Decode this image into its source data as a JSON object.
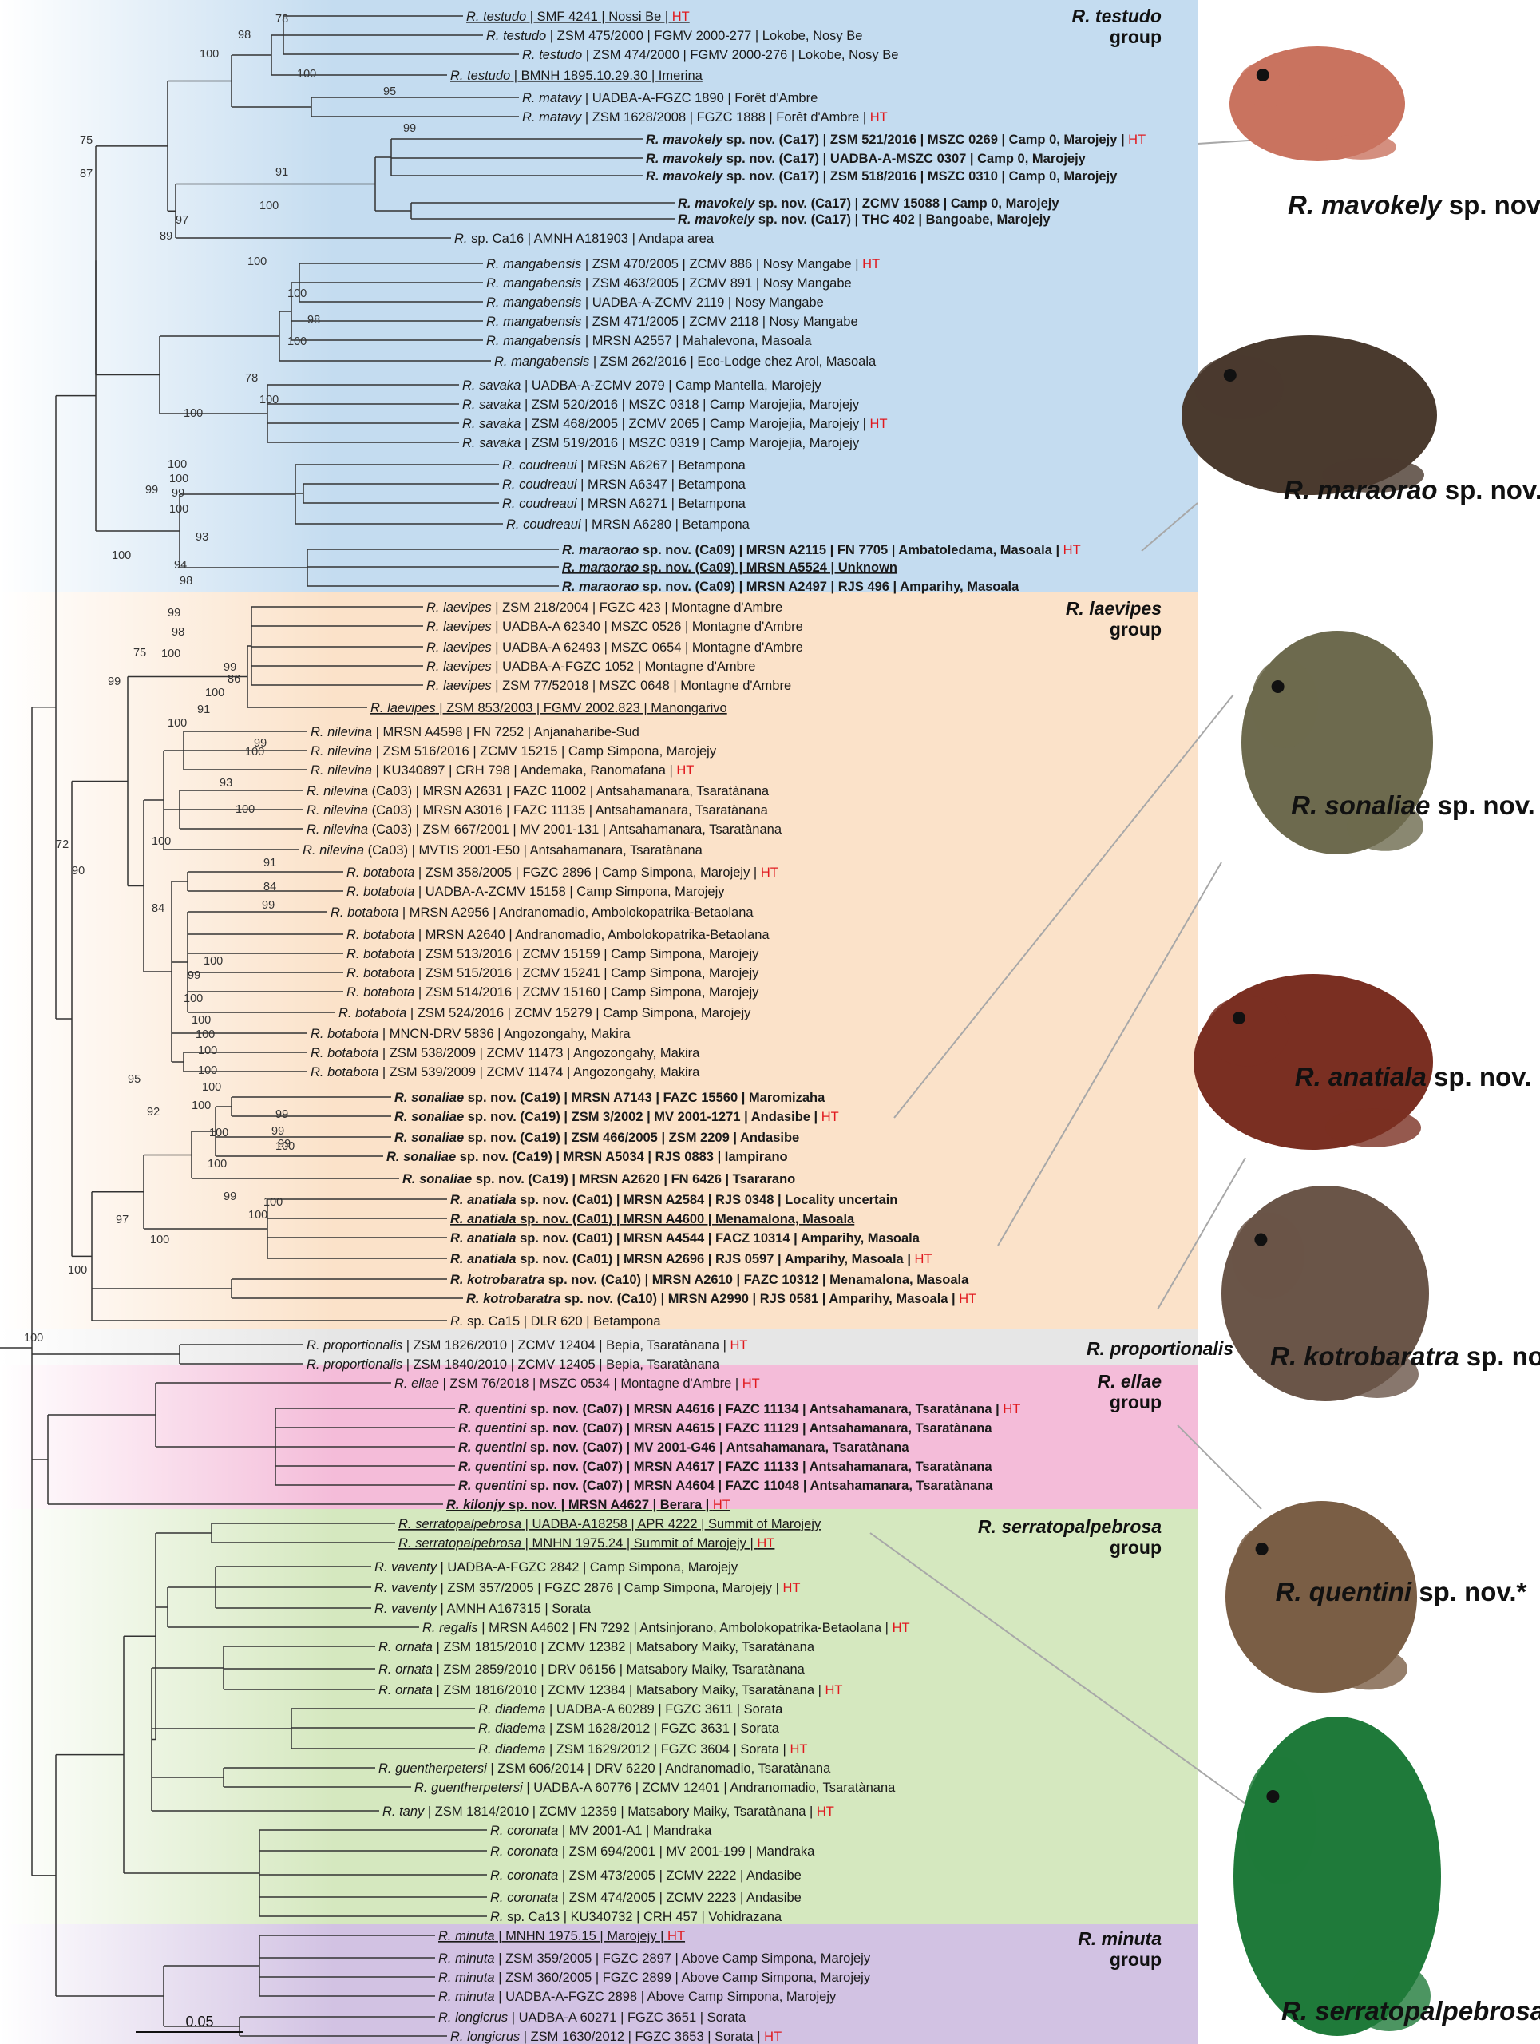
{
  "groups": [
    {
      "label": "R. testudo\ngroup",
      "color": "#c4dcf0"
    },
    {
      "label": "R. laevipes\ngroup",
      "color": "#fbe2c9"
    },
    {
      "label": "R. proportionalis",
      "color": "#e6e6e6"
    },
    {
      "label": "R. ellae\ngroup",
      "color": "#f4bcd9"
    },
    {
      "label": "R. serratopalpebrosa\ngroup",
      "color": "#d5e8bf"
    },
    {
      "label": "R. minuta\ngroup",
      "color": "#d2c2e3"
    }
  ],
  "leaves": [
    {
      "sp": "R. testudo",
      "rest": " | SMF 4241 | Nossi Be | ",
      "ht": true,
      "u": true
    },
    {
      "sp": "R. testudo",
      "rest": " | ZSM 475/2000 | FGMV 2000-277 | Lokobe, Nosy Be"
    },
    {
      "sp": "R. testudo",
      "rest": " | ZSM 474/2000 | FGMV 2000-276 | Lokobe, Nosy Be"
    },
    {
      "sp": "R. testudo",
      "rest": " | BMNH 1895.10.29.30 | Imerina",
      "u": true
    },
    {
      "sp": "R. matavy",
      "rest": " | UADBA-A-FGZC 1890 | Forêt d'Ambre"
    },
    {
      "sp": "R. matavy",
      "rest": " | ZSM 1628/2008 | FGZC 1888 | Forêt d'Ambre | ",
      "ht": true
    },
    {
      "sp": "R. mavokely",
      "rest": " sp. nov. (Ca17) | ZSM 521/2016 | MSZC 0269 | Camp 0, Marojejy | ",
      "ht": true,
      "b": true
    },
    {
      "sp": "R. mavokely",
      "rest": " sp. nov. (Ca17) | UADBA-A-MSZC 0307 | Camp 0, Marojejy",
      "b": true
    },
    {
      "sp": "R. mavokely",
      "rest": " sp. nov. (Ca17) | ZSM 518/2016 | MSZC 0310 | Camp 0, Marojejy",
      "b": true
    },
    {
      "sp": "R. mavokely",
      "rest": " sp. nov. (Ca17) | ZCMV 15088 | Camp 0, Marojejy",
      "b": true
    },
    {
      "sp": "R. mavokely",
      "rest": " sp. nov. (Ca17) | THC 402 | Bangoabe, Marojejy",
      "b": true
    },
    {
      "sp": "R.",
      "rest": " sp. Ca16 | AMNH A181903 | Andapa area"
    },
    {
      "sp": "R. mangabensis",
      "rest": " | ZSM 470/2005 | ZCMV 886 | Nosy Mangabe | ",
      "ht": true
    },
    {
      "sp": "R. mangabensis",
      "rest": " | ZSM 463/2005 | ZCMV 891 | Nosy Mangabe"
    },
    {
      "sp": "R. mangabensis",
      "rest": " | UADBA-A-ZCMV 2119 | Nosy Mangabe"
    },
    {
      "sp": "R. mangabensis",
      "rest": " | ZSM 471/2005 | ZCMV 2118 | Nosy Mangabe"
    },
    {
      "sp": "R. mangabensis",
      "rest": " | MRSN A2557 | Mahalevona, Masoala"
    },
    {
      "sp": "R. mangabensis",
      "rest": " | ZSM 262/2016 | Eco-Lodge chez Arol, Masoala"
    },
    {
      "sp": "R. savaka",
      "rest": " | UADBA-A-ZCMV 2079 | Camp Mantella, Marojejy"
    },
    {
      "sp": "R. savaka",
      "rest": " | ZSM 520/2016 | MSZC 0318 | Camp Marojejia, Marojejy"
    },
    {
      "sp": "R. savaka",
      "rest": " | ZSM 468/2005 | ZCMV 2065 | Camp Marojejia, Marojejy | ",
      "ht": true
    },
    {
      "sp": "R. savaka",
      "rest": " | ZSM 519/2016 | MSZC 0319 | Camp Marojejia, Marojejy"
    },
    {
      "sp": "R. coudreaui",
      "rest": " | MRSN A6267 | Betampona"
    },
    {
      "sp": "R. coudreaui",
      "rest": " | MRSN A6347 | Betampona"
    },
    {
      "sp": "R. coudreaui",
      "rest": " | MRSN A6271 | Betampona"
    },
    {
      "sp": "R. coudreaui",
      "rest": " | MRSN A6280 | Betampona"
    },
    {
      "sp": "R. maraorao",
      "rest": " sp. nov. (Ca09) | MRSN A2115 | FN 7705 | Ambatoledama, Masoala | ",
      "ht": true,
      "b": true
    },
    {
      "sp": "R. maraorao",
      "rest": " sp. nov. (Ca09) | MRSN A5524 | Unknown",
      "b": true,
      "u": true
    },
    {
      "sp": "R. maraorao",
      "rest": " sp. nov. (Ca09) | MRSN A2497 | RJS 496 | Amparihy, Masoala",
      "b": true
    },
    {
      "sp": "R. laevipes",
      "rest": " | ZSM 218/2004 | FGZC 423 | Montagne d'Ambre"
    },
    {
      "sp": "R. laevipes",
      "rest": " | UADBA-A 62340 | MSZC 0526 | Montagne d'Ambre"
    },
    {
      "sp": "R. laevipes",
      "rest": " | UADBA-A 62493 | MSZC 0654 | Montagne d'Ambre"
    },
    {
      "sp": "R. laevipes",
      "rest": " | UADBA-A-FGZC 1052 | Montagne d'Ambre"
    },
    {
      "sp": "R. laevipes",
      "rest": " | ZSM 77/52018 | MSZC 0648 | Montagne d'Ambre"
    },
    {
      "sp": "R. laevipes",
      "rest": " | ZSM 853/2003 | FGMV 2002.823 | Manongarivo",
      "u": true
    },
    {
      "sp": "R. nilevina",
      "rest": " | MRSN A4598 | FN 7252 | Anjanaharibe-Sud"
    },
    {
      "sp": "R. nilevina",
      "rest": " | ZSM 516/2016 | ZCMV 15215 | Camp Simpona, Marojejy"
    },
    {
      "sp": "R. nilevina",
      "rest": " | KU340897 | CRH 798 | Andemaka, Ranomafana | ",
      "ht": true
    },
    {
      "sp": "R. nilevina",
      "rest": " (Ca03) | MRSN A2631 | FAZC 11002 | Antsahamanara, Tsaratànana"
    },
    {
      "sp": "R. nilevina",
      "rest": " (Ca03) | MRSN A3016 | FAZC 11135 | Antsahamanara, Tsaratànana"
    },
    {
      "sp": "R. nilevina",
      "rest": " (Ca03) | ZSM 667/2001 | MV 2001-131 | Antsahamanara, Tsaratànana"
    },
    {
      "sp": "R. nilevina",
      "rest": " (Ca03) | MVTIS 2001-E50 | Antsahamanara, Tsaratànana"
    },
    {
      "sp": "R. botabota",
      "rest": " | ZSM 358/2005 | FGZC 2896 | Camp Simpona, Marojejy | ",
      "ht": true
    },
    {
      "sp": "R. botabota",
      "rest": " | UADBA-A-ZCMV 15158 | Camp Simpona, Marojejy"
    },
    {
      "sp": "R. botabota",
      "rest": " | MRSN A2956 | Andranomadio, Ambolokopatrika-Betaolana"
    },
    {
      "sp": "R. botabota",
      "rest": " | MRSN A2640 | Andranomadio, Ambolokopatrika-Betaolana"
    },
    {
      "sp": "R. botabota",
      "rest": " | ZSM 513/2016 | ZCMV 15159 | Camp Simpona, Marojejy"
    },
    {
      "sp": "R. botabota",
      "rest": " | ZSM 515/2016 | ZCMV 15241 | Camp Simpona, Marojejy"
    },
    {
      "sp": "R. botabota",
      "rest": " | ZSM 514/2016 | ZCMV 15160 | Camp Simpona, Marojejy"
    },
    {
      "sp": "R. botabota",
      "rest": " | ZSM 524/2016 | ZCMV 15279 | Camp Simpona, Marojejy"
    },
    {
      "sp": "R. botabota",
      "rest": " | MNCN-DRV 5836 | Angozongahy, Makira"
    },
    {
      "sp": "R. botabota",
      "rest": " | ZSM 538/2009 | ZCMV 11473 | Angozongahy, Makira"
    },
    {
      "sp": "R. botabota",
      "rest": " | ZSM 539/2009 | ZCMV 11474 | Angozongahy, Makira"
    },
    {
      "sp": "R. sonaliae",
      "rest": " sp. nov. (Ca19) | MRSN A7143 | FAZC 15560 | Maromizaha",
      "b": true
    },
    {
      "sp": "R. sonaliae",
      "rest": " sp. nov. (Ca19) | ZSM 3/2002 | MV 2001-1271 | Andasibe | ",
      "ht": true,
      "b": true
    },
    {
      "sp": "R. sonaliae",
      "rest": " sp. nov. (Ca19) | ZSM 466/2005 | ZSM 2209 | Andasibe",
      "b": true
    },
    {
      "sp": "R. sonaliae",
      "rest": " sp. nov. (Ca19) | MRSN A5034 | RJS 0883 | Iampirano",
      "b": true
    },
    {
      "sp": "R. sonaliae",
      "rest": " sp. nov. (Ca19) | MRSN A2620 | FN 6426 | Tsararano",
      "b": true
    },
    {
      "sp": "R. anatiala",
      "rest": " sp. nov. (Ca01) | MRSN A2584 | RJS 0348 | Locality uncertain",
      "b": true
    },
    {
      "sp": "R. anatiala",
      "rest": " sp. nov. (Ca01) | MRSN A4600 | Menamalona, Masoala",
      "b": true,
      "u": true
    },
    {
      "sp": "R. anatiala",
      "rest": " sp. nov. (Ca01) | MRSN A4544 | FACZ 10314 | Amparihy, Masoala",
      "b": true
    },
    {
      "sp": "R. anatiala",
      "rest": " sp. nov. (Ca01) | MRSN A2696 | RJS 0597 | Amparihy, Masoala | ",
      "ht": true,
      "b": true
    },
    {
      "sp": "R. kotrobaratra",
      "rest": " sp. nov. (Ca10) | MRSN A2610 | FAZC 10312 | Menamalona, Masoala",
      "b": true
    },
    {
      "sp": "R. kotrobaratra",
      "rest": " sp. nov. (Ca10) | MRSN A2990 | RJS 0581 | Amparihy, Masoala | ",
      "ht": true,
      "b": true
    },
    {
      "sp": "R.",
      "rest": " sp. Ca15 | DLR 620 | Betampona"
    },
    {
      "sp": "R. proportionalis",
      "rest": " | ZSM 1826/2010 | ZCMV 12404 | Bepia, Tsaratànana | ",
      "ht": true
    },
    {
      "sp": "R. proportionalis",
      "rest": " | ZSM 1840/2010 | ZCMV 12405 | Bepia, Tsaratànana"
    },
    {
      "sp": "R. ellae",
      "rest": " | ZSM 76/2018 | MSZC 0534 | Montagne d'Ambre | ",
      "ht": true
    },
    {
      "sp": "R. quentini",
      "rest": " sp. nov. (Ca07) | MRSN A4616 | FAZC 11134 | Antsahamanara, Tsaratànana | ",
      "ht": true,
      "b": true
    },
    {
      "sp": "R. quentini",
      "rest": " sp. nov. (Ca07) | MRSN A4615 | FAZC 11129 | Antsahamanara, Tsaratànana",
      "b": true
    },
    {
      "sp": "R. quentini",
      "rest": " sp. nov. (Ca07) | MV 2001-G46 | Antsahamanara, Tsaratànana",
      "b": true
    },
    {
      "sp": "R. quentini",
      "rest": " sp. nov. (Ca07) | MRSN A4617 | FAZC 11133 | Antsahamanara, Tsaratànana",
      "b": true
    },
    {
      "sp": "R. quentini",
      "rest": " sp. nov. (Ca07) | MRSN A4604 | FAZC 11048 | Antsahamanara, Tsaratànana",
      "b": true
    },
    {
      "sp": "R. kilonjy",
      "rest": " sp. nov. | MRSN A4627 | Berara | ",
      "ht": true,
      "b": true,
      "u": true
    },
    {
      "sp": "R. serratopalpebrosa",
      "rest": " | UADBA-A18258 | APR 4222 | Summit of Marojejy",
      "u": true
    },
    {
      "sp": "R. serratopalpebrosa",
      "rest": " | MNHN 1975.24 | Summit of Marojejy | ",
      "ht": true,
      "u": true
    },
    {
      "sp": "R. vaventy",
      "rest": " | UADBA-A-FGZC 2842 | Camp Simpona, Marojejy"
    },
    {
      "sp": "R. vaventy",
      "rest": " | ZSM 357/2005 | FGZC 2876 | Camp Simpona, Marojejy | ",
      "ht": true
    },
    {
      "sp": "R. vaventy",
      "rest": " | AMNH A167315 | Sorata"
    },
    {
      "sp": "R. regalis",
      "rest": " | MRSN A4602 | FN 7292 | Antsinjorano, Ambolokopatrika-Betaolana | ",
      "ht": true
    },
    {
      "sp": "R. ornata",
      "rest": " | ZSM 1815/2010 | ZCMV 12382 | Matsabory Maiky, Tsaratànana"
    },
    {
      "sp": "R. ornata",
      "rest": " | ZSM 2859/2010 | DRV 06156 | Matsabory Maiky, Tsaratànana"
    },
    {
      "sp": "R. ornata",
      "rest": " | ZSM 1816/2010 | ZCMV 12384 | Matsabory Maiky, Tsaratànana | ",
      "ht": true
    },
    {
      "sp": "R. diadema",
      "rest": " | UADBA-A 60289 | FGZC 3611 | Sorata"
    },
    {
      "sp": "R. diadema",
      "rest": " | ZSM 1628/2012 | FGZC 3631 | Sorata"
    },
    {
      "sp": "R. diadema",
      "rest": " | ZSM 1629/2012 | FGZC 3604 | Sorata | ",
      "ht": true
    },
    {
      "sp": "R. guentherpetersi",
      "rest": " | ZSM 606/2014 | DRV 6220 | Andranomadio, Tsaratànana"
    },
    {
      "sp": "R. guentherpetersi",
      "rest": " | UADBA-A 60776 | ZCMV 12401 | Andranomadio, Tsaratànana"
    },
    {
      "sp": "R. tany",
      "rest": " | ZSM 1814/2010 | ZCMV 12359 | Matsabory Maiky, Tsaratànana | ",
      "ht": true
    },
    {
      "sp": "R. coronata",
      "rest": " | MV 2001-A1 | Mandraka"
    },
    {
      "sp": "R. coronata",
      "rest": " | ZSM 694/2001 | MV 2001-199 | Mandraka"
    },
    {
      "sp": "R. coronata",
      "rest": " | ZSM 473/2005 | ZCMV 2222 | Andasibe"
    },
    {
      "sp": "R. coronata",
      "rest": " | ZSM 474/2005 | ZCMV 2223 | Andasibe"
    },
    {
      "sp": "R.",
      "rest": " sp. Ca13 | KU340732 | CRH 457 | Vohidrazana"
    },
    {
      "sp": "R. minuta",
      "rest": " | MNHN 1975.15 | Marojejy | ",
      "ht": true,
      "u": true
    },
    {
      "sp": "R. minuta",
      "rest": " | ZSM 359/2005 | FGZC 2897 | Above Camp Simpona, Marojejy"
    },
    {
      "sp": "R. minuta",
      "rest": " | ZSM 360/2005 | FGZC 2899 | Above Camp Simpona, Marojejy"
    },
    {
      "sp": "R. minuta",
      "rest": " | UADBA-A-FGZC 2898 | Above Camp Simpona, Marojejy"
    },
    {
      "sp": "R. longicrus",
      "rest": " | UADBA-A 60271 | FGZC 3651 | Sorata"
    },
    {
      "sp": "R. longicrus",
      "rest": " | ZSM 1630/2012 | FGZC 3653 | Sorata | ",
      "ht": true
    }
  ],
  "ht_label": "HT",
  "supports": [
    "78",
    "98",
    "100",
    "100",
    "95",
    "99",
    "91",
    "100",
    "89",
    "97",
    "100",
    "100",
    "98",
    "100",
    "75",
    "87",
    "78",
    "100",
    "100",
    "100",
    "100",
    "99",
    "99",
    "100",
    "100",
    "93",
    "94",
    "98",
    "99",
    "98",
    "100",
    "75",
    "99",
    "99",
    "86",
    "100",
    "91",
    "100",
    "99",
    "100",
    "93",
    "100",
    "90",
    "72",
    "100",
    "91",
    "84",
    "99",
    "84",
    "100",
    "99",
    "100",
    "100",
    "100",
    "100",
    "100",
    "100",
    "95",
    "92",
    "100",
    "99",
    "99",
    "100",
    "99",
    "100",
    "100",
    "99",
    "100",
    "100",
    "97",
    "100",
    "100"
  ],
  "captions": [
    "R. mavokely sp. nov.",
    "R. maraorao sp. nov.",
    "R. sonaliae sp. nov.",
    "R. anatiala sp. nov.",
    "R. kotrobaratra sp. nov.",
    "R. quentini sp. nov.*",
    "R. serratopalpebrosa"
  ],
  "frog_colors": [
    "#c9735f",
    "#4a3a2e",
    "#6d6a4e",
    "#7a2f22",
    "#6a5548",
    "#7a5e45",
    "#1f7a3a"
  ],
  "scale_bar": "0.05"
}
